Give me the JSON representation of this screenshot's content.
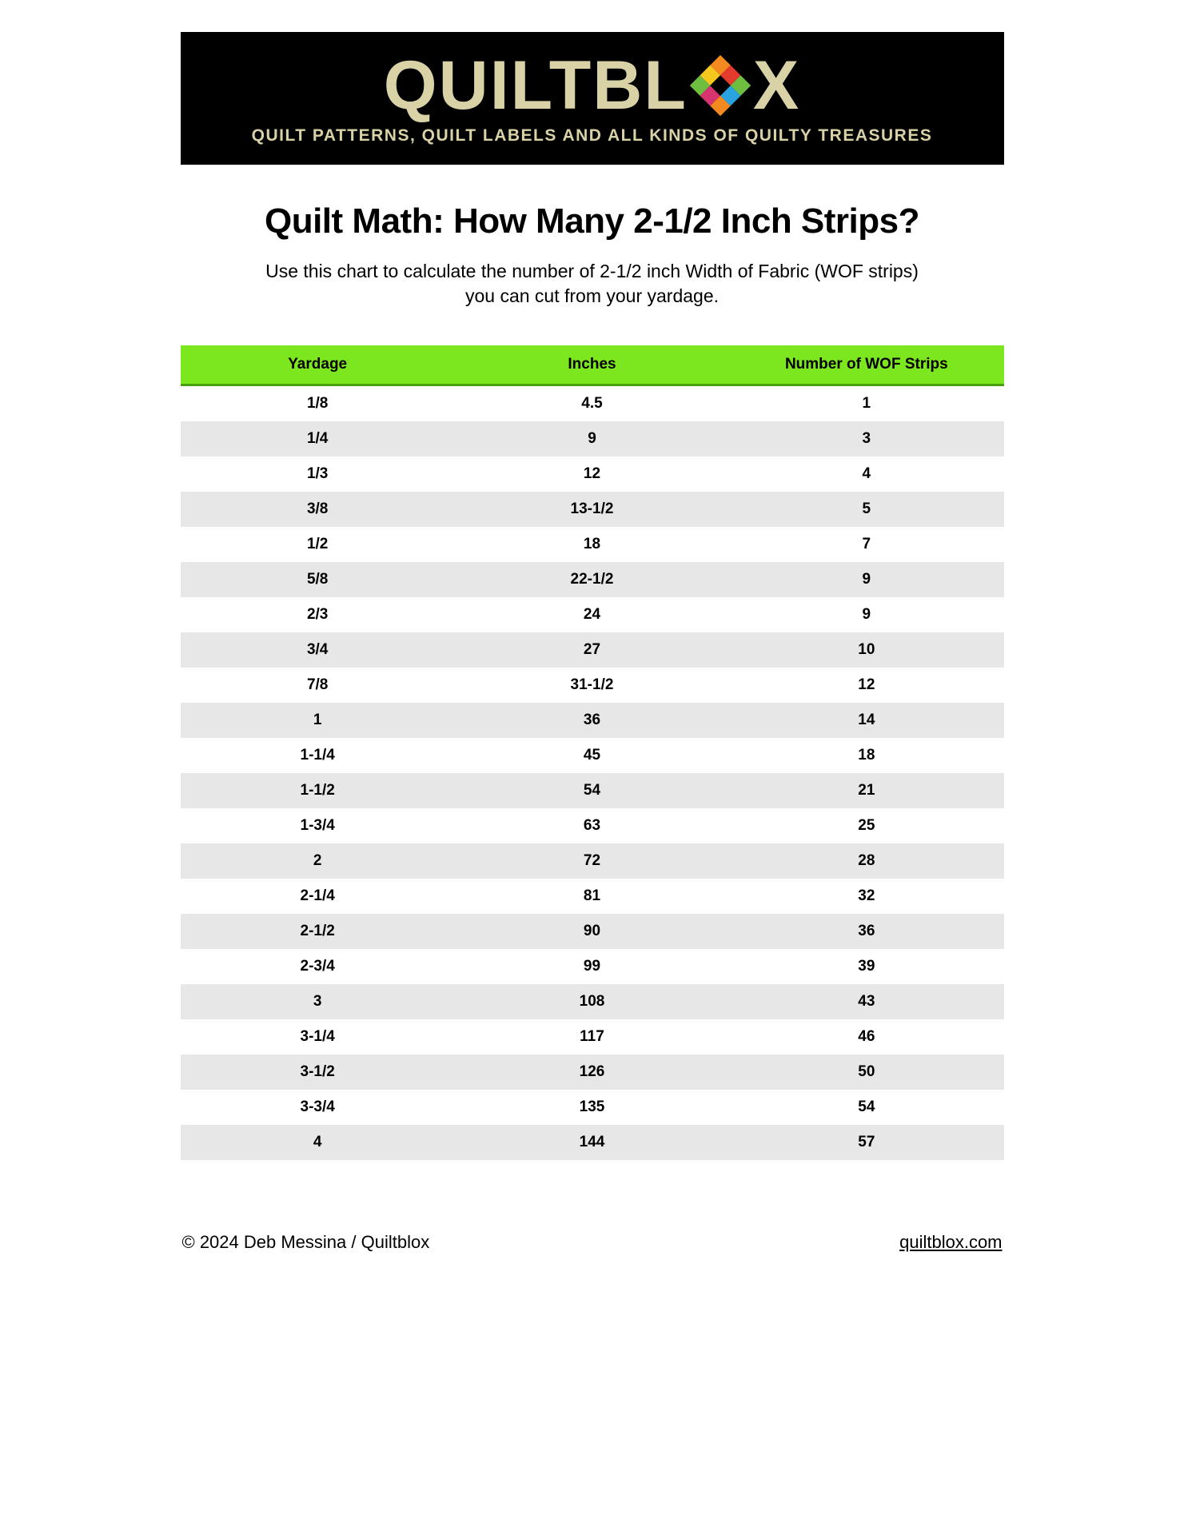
{
  "banner": {
    "brand_left": "QUILTBL",
    "brand_right": "X",
    "tagline": "QUILT PATTERNS, QUILT LABELS AND ALL KINDS OF QUILTY TREASURES",
    "background_color": "#000000",
    "text_color": "#d9d2a6",
    "logo_colors": {
      "orange": "#f48a1f",
      "red": "#e33b2e",
      "green": "#6ebf3f",
      "yellow": "#f4c81f",
      "blue": "#2aa4e0",
      "magenta": "#d7336f"
    }
  },
  "title": "Quilt Math: How Many 2-1/2 Inch Strips?",
  "subtitle_line1": "Use this chart to calculate the number of 2-1/2 inch Width of Fabric (WOF strips)",
  "subtitle_line2": "you can cut from your yardage.",
  "table": {
    "header_bg": "#7ce61f",
    "header_underline": "#4aa00c",
    "row_alt_bg": "#e7e7e7",
    "columns": [
      "Yardage",
      "Inches",
      "Number of WOF Strips"
    ],
    "rows": [
      [
        "1/8",
        "4.5",
        "1"
      ],
      [
        "1/4",
        "9",
        "3"
      ],
      [
        "1/3",
        "12",
        "4"
      ],
      [
        "3/8",
        "13-1/2",
        "5"
      ],
      [
        "1/2",
        "18",
        "7"
      ],
      [
        "5/8",
        "22-1/2",
        "9"
      ],
      [
        "2/3",
        "24",
        "9"
      ],
      [
        "3/4",
        "27",
        "10"
      ],
      [
        "7/8",
        "31-1/2",
        "12"
      ],
      [
        "1",
        "36",
        "14"
      ],
      [
        "1-1/4",
        "45",
        "18"
      ],
      [
        "1-1/2",
        "54",
        "21"
      ],
      [
        "1-3/4",
        "63",
        "25"
      ],
      [
        "2",
        "72",
        "28"
      ],
      [
        "2-1/4",
        "81",
        "32"
      ],
      [
        "2-1/2",
        "90",
        "36"
      ],
      [
        "2-3/4",
        "99",
        "39"
      ],
      [
        "3",
        "108",
        "43"
      ],
      [
        "3-1/4",
        "117",
        "46"
      ],
      [
        "3-1/2",
        "126",
        "50"
      ],
      [
        "3-3/4",
        "135",
        "54"
      ],
      [
        "4",
        "144",
        "57"
      ]
    ]
  },
  "footer": {
    "copyright": "© 2024 Deb Messina / Quiltblox",
    "site": "quiltblox.com"
  }
}
